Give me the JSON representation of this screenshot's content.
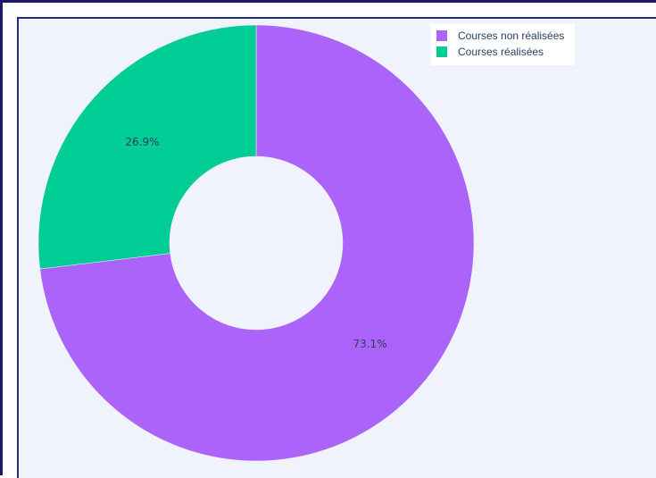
{
  "chart_data": {
    "type": "pie",
    "hole": true,
    "categories": [
      "Courses non réalisées",
      "Courses réalisées"
    ],
    "values": [
      73.1,
      26.9
    ],
    "labels": [
      "73.1%",
      "26.9%"
    ],
    "colors": [
      "#ab63fa",
      "#00cc96"
    ],
    "legend_position": "top-right"
  }
}
